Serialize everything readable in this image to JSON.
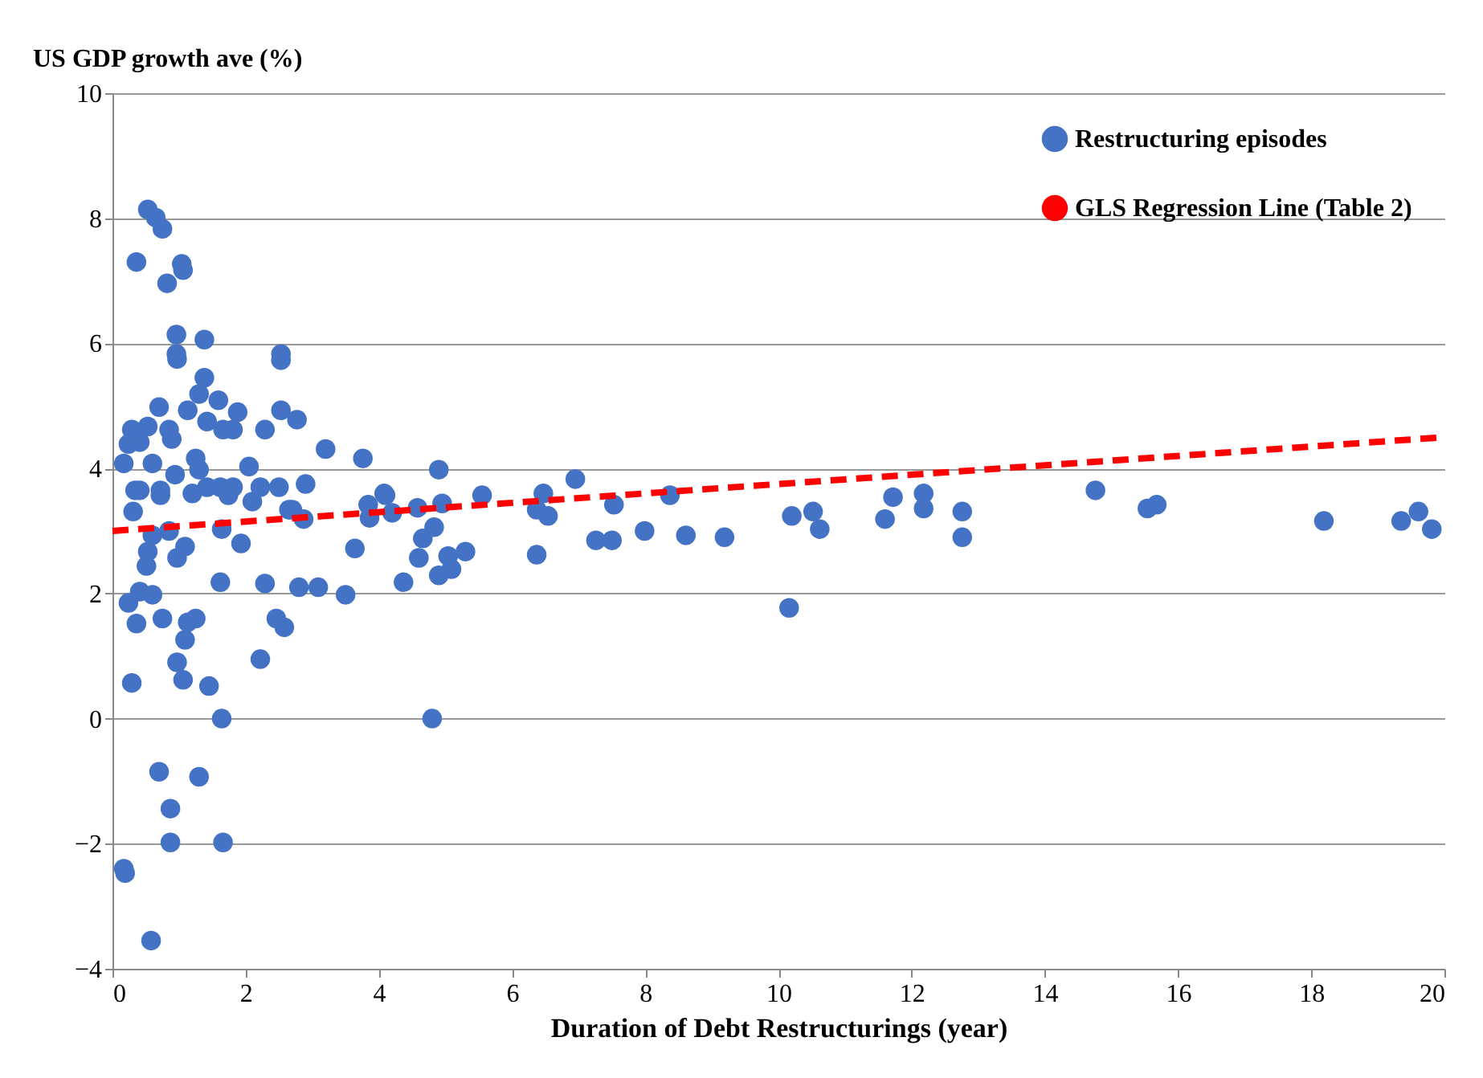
{
  "chart_data": {
    "type": "scatter",
    "xlabel": "Duration of Debt Restructurings (year)",
    "ylabel": "US GDP growth ave (%)",
    "xlim": [
      0,
      20
    ],
    "xticks": [
      0,
      2,
      4,
      6,
      8,
      10,
      12,
      14,
      16,
      18,
      20
    ],
    "ylim": [
      -4,
      10
    ],
    "yticks": [
      -4,
      -2,
      0,
      2,
      4,
      6,
      8,
      10
    ],
    "grid": "y",
    "legend": "top right",
    "series": [
      {
        "name": "Restructuring episodes",
        "color": "#4472c4",
        "marker": "circle",
        "x": [
          0.17,
          0.19,
          0.58,
          0.7,
          0.87,
          0.87,
          1.3,
          1.66,
          1.64,
          4.8,
          0.29,
          0.97,
          1.06,
          1.45,
          2.22,
          1.09,
          0.36,
          0.75,
          1.13,
          1.25,
          2.46,
          2.58,
          0.24,
          0.41,
          0.6,
          0.53,
          0.51,
          0.97,
          1.09,
          0.6,
          0.85,
          1.64,
          1.93,
          1.62,
          2.29,
          0.31,
          0.34,
          0.72,
          1.2,
          1.74,
          2.1,
          2.65,
          0.41,
          0.72,
          1.42,
          1.62,
          1.81,
          2.22,
          2.5,
          4.08,
          0.17,
          0.6,
          0.94,
          1.25,
          1.3,
          2.05,
          0.24,
          0.41,
          0.89,
          0.29,
          0.53,
          0.85,
          1.66,
          1.81,
          2.29,
          1.42,
          0.7,
          1.13,
          1.88,
          2.53,
          2.77,
          1.3,
          1.59,
          1.38,
          0.96,
          0.97,
          2.53,
          2.53,
          0.96,
          1.38,
          0.82,
          1.04,
          1.06,
          0.36,
          0.53,
          0.65,
          0.75,
          3.2,
          3.76,
          4.9,
          2.9,
          6.95,
          2.7,
          2.87,
          3.84,
          3.86,
          4.1,
          4.2,
          4.58,
          4.95,
          5.55,
          4.83,
          4.66,
          4.6,
          5.04,
          5.3,
          5.09,
          4.9,
          3.64,
          2.8,
          3.09,
          3.5,
          4.37,
          6.47,
          6.37,
          6.54,
          6.37,
          7.53,
          7.26,
          7.5,
          7.99,
          8.37,
          8.61,
          9.19,
          10.16,
          10.2,
          10.52,
          10.62,
          11.6,
          11.72,
          12.18,
          12.18,
          12.76,
          12.76,
          14.76,
          15.54,
          15.68,
          18.19,
          19.35,
          19.61,
          19.81
        ],
        "values": [
          -2.4,
          -2.47,
          -3.55,
          -0.85,
          -1.44,
          -1.98,
          -0.93,
          -1.98,
          0,
          0,
          0.57,
          0.9,
          0.62,
          0.52,
          0.95,
          1.26,
          1.52,
          1.6,
          1.54,
          1.6,
          1.6,
          1.46,
          1.85,
          2.03,
          1.98,
          2.67,
          2.44,
          2.57,
          2.75,
          2.93,
          3.0,
          3.03,
          2.8,
          2.18,
          2.16,
          3.31,
          3.65,
          3.57,
          3.6,
          3.57,
          3.47,
          3.34,
          3.65,
          3.65,
          3.7,
          3.7,
          3.7,
          3.7,
          3.7,
          3.6,
          4.08,
          4.08,
          3.9,
          4.16,
          3.98,
          4.03,
          4.39,
          4.42,
          4.47,
          4.62,
          4.67,
          4.62,
          4.62,
          4.62,
          4.62,
          4.75,
          4.98,
          4.93,
          4.9,
          4.93,
          4.78,
          5.19,
          5.09,
          5.45,
          5.83,
          5.75,
          5.83,
          5.73,
          6.14,
          6.06,
          6.96,
          7.27,
          7.17,
          7.3,
          8.14,
          8.01,
          7.83,
          4.31,
          4.16,
          3.98,
          3.75,
          3.83,
          3.34,
          3.19,
          3.42,
          3.21,
          3.57,
          3.29,
          3.37,
          3.44,
          3.57,
          3.06,
          2.88,
          2.57,
          2.6,
          2.67,
          2.39,
          2.29,
          2.72,
          2.1,
          2.1,
          1.98,
          2.18,
          3.6,
          3.34,
          3.24,
          2.62,
          3.42,
          2.85,
          2.85,
          3.0,
          3.57,
          2.93,
          2.9,
          1.77,
          3.24,
          3.31,
          3.03,
          3.19,
          3.54,
          3.6,
          3.36,
          3.31,
          2.9,
          3.65,
          3.36,
          3.42,
          3.16,
          3.16,
          3.31,
          3.03
        ]
      },
      {
        "name": "GLS Regression Line (Table 2)",
        "color": "#ff0000",
        "type": "line",
        "line_style": "dashed",
        "x": [
          0,
          20
        ],
        "values": [
          3.0,
          4.5
        ]
      }
    ]
  }
}
